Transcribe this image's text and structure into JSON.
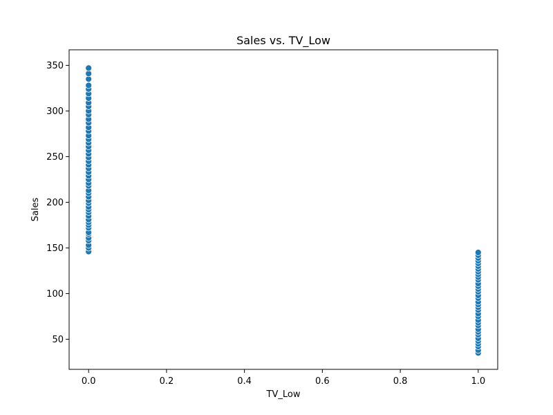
{
  "chart_data": {
    "type": "scatter",
    "title": "Sales vs. TV_Low",
    "xlabel": "TV_Low",
    "ylabel": "Sales",
    "xlim": [
      -0.05,
      1.05
    ],
    "ylim": [
      17,
      367
    ],
    "xticks": [
      0.0,
      0.2,
      0.4,
      0.6,
      0.8,
      1.0
    ],
    "xtick_labels": [
      "0.0",
      "0.2",
      "0.4",
      "0.6",
      "0.8",
      "1.0"
    ],
    "yticks": [
      50,
      100,
      150,
      200,
      250,
      300,
      350
    ],
    "ytick_labels": [
      "50",
      "100",
      "150",
      "200",
      "250",
      "300",
      "350"
    ],
    "grid": false,
    "point_color": "#1f77b4",
    "series": [
      {
        "x": [
          0,
          0,
          0,
          0,
          0,
          0,
          0,
          0,
          0,
          0,
          0,
          0,
          0,
          0,
          0,
          0,
          0,
          0,
          0,
          0,
          0,
          0,
          0,
          0,
          0,
          0,
          0,
          0,
          0,
          0,
          0,
          0,
          0,
          0,
          0,
          0,
          0,
          0,
          0,
          0,
          0,
          0,
          0,
          0,
          0,
          0,
          0,
          0,
          0,
          0,
          1,
          1,
          1,
          1,
          1,
          1,
          1,
          1,
          1,
          1,
          1,
          1,
          1,
          1,
          1,
          1,
          1,
          1,
          1,
          1,
          1,
          1,
          1,
          1,
          1,
          1,
          1,
          1,
          1,
          1,
          1,
          1,
          1,
          1,
          1
        ],
        "y": [
          146,
          150,
          153,
          158,
          161,
          165,
          167,
          172,
          175,
          178,
          181,
          185,
          189,
          192,
          195,
          199,
          202,
          206,
          210,
          213,
          218,
          221,
          225,
          229,
          233,
          237,
          241,
          245,
          249,
          253,
          257,
          261,
          265,
          269,
          273,
          278,
          282,
          287,
          291,
          296,
          300,
          305,
          309,
          314,
          319,
          324,
          328,
          335,
          341,
          347,
          35,
          38,
          42,
          45,
          48,
          51,
          55,
          58,
          61,
          65,
          68,
          71,
          75,
          78,
          82,
          85,
          88,
          91,
          95,
          98,
          102,
          105,
          108,
          111,
          115,
          118,
          121,
          124,
          127,
          130,
          133,
          136,
          139,
          142,
          145
        ]
      }
    ]
  }
}
